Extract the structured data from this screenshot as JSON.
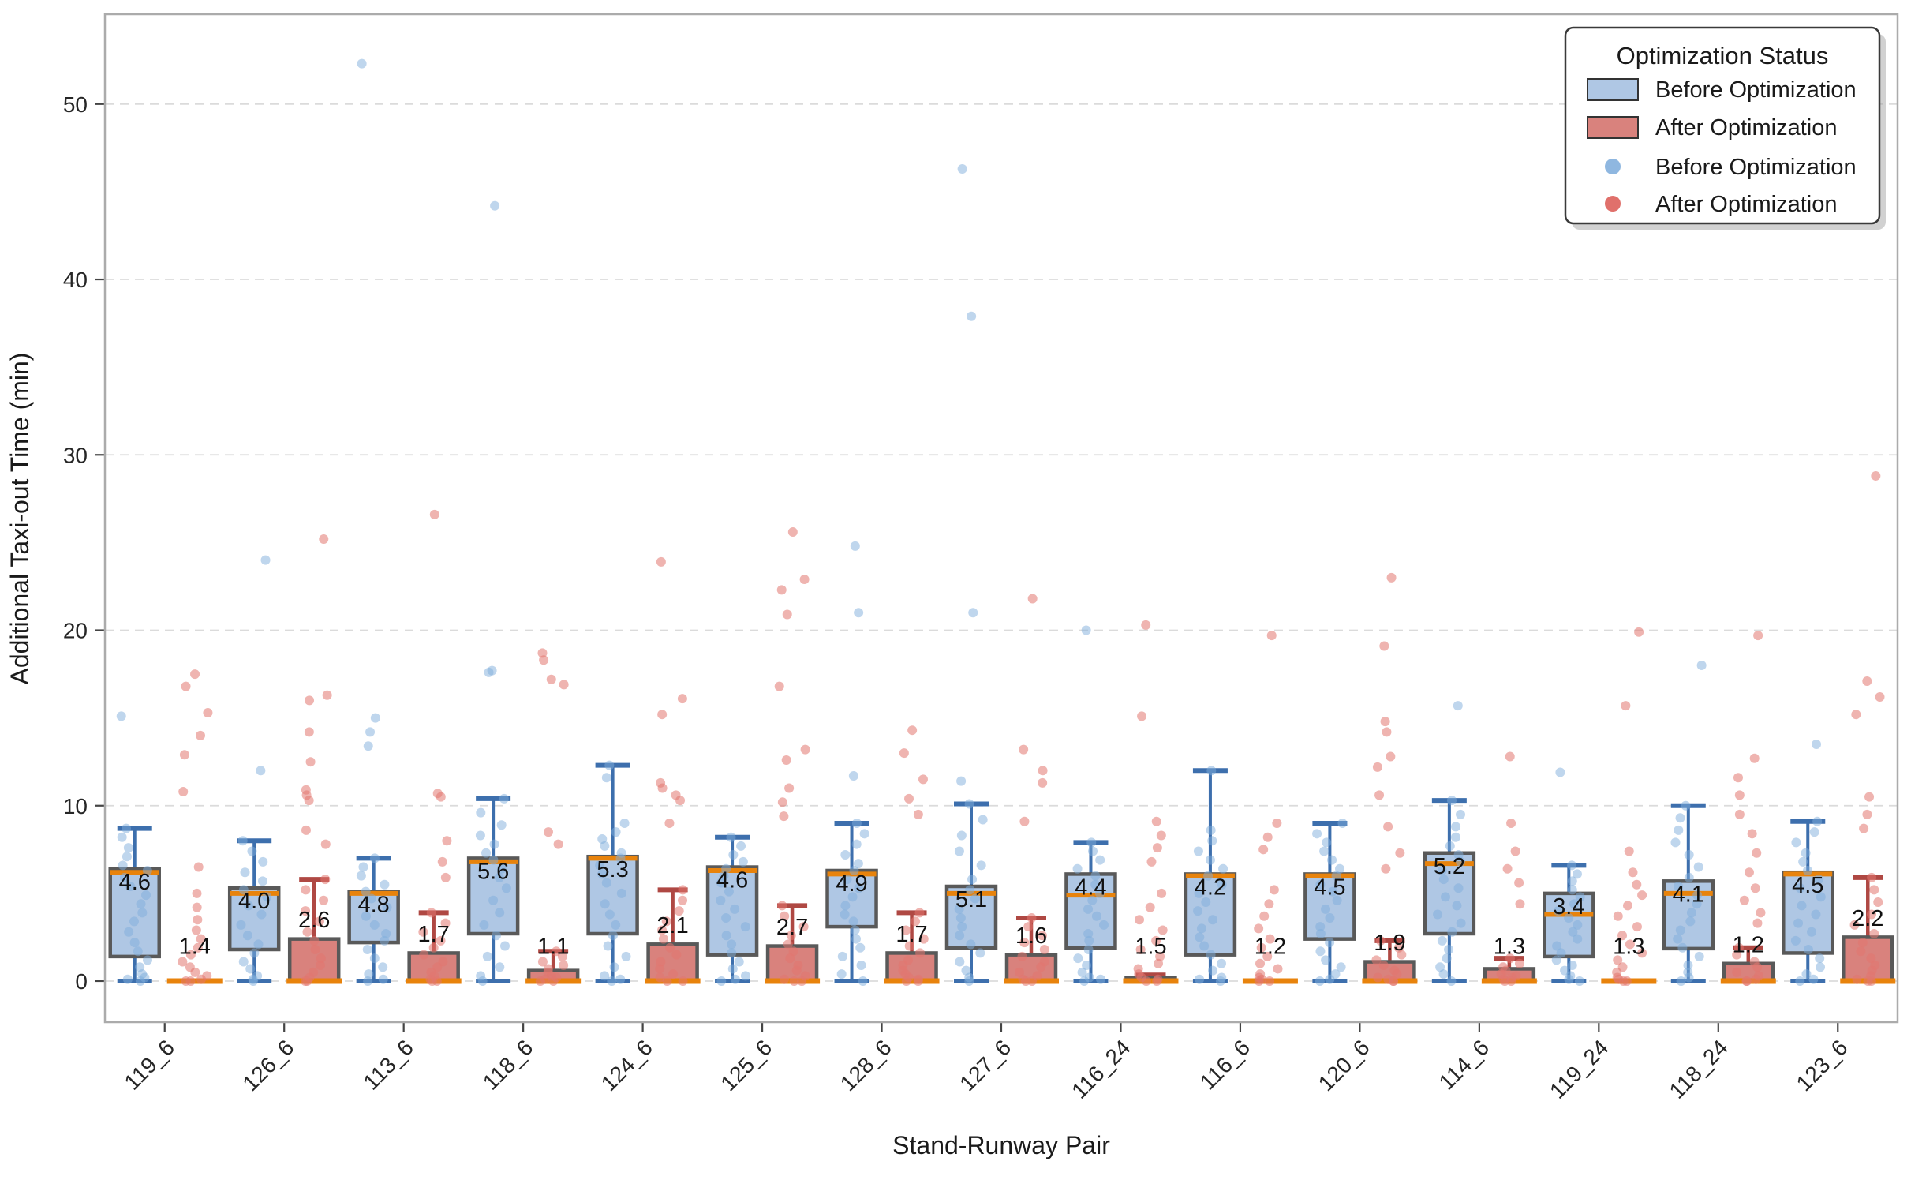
{
  "figure": {
    "xlabel": "Stand-Runway Pair",
    "ylabel": "Additional Taxi-out Time (min)",
    "legend": {
      "title": "Optimization Status",
      "items": [
        {
          "type": "patch",
          "label": "Before Optimization",
          "color": "#AFC7E4"
        },
        {
          "type": "patch",
          "label": "After Optimization",
          "color": "#D9827D"
        },
        {
          "type": "dot",
          "label": "Before Optimization",
          "color": "#8FB7E0"
        },
        {
          "type": "dot",
          "label": "After Optimization",
          "color": "#E0706B"
        }
      ]
    }
  },
  "chart_data": {
    "type": "boxplot-with-strip",
    "title": "",
    "xlabel": "Stand-Runway Pair",
    "ylabel": "Additional Taxi-out Time (min)",
    "categories": [
      "119_6",
      "126_6",
      "113_6",
      "118_6",
      "124_6",
      "125_6",
      "128_6",
      "127_6",
      "116_24",
      "116_6",
      "120_6",
      "114_6",
      "119_24",
      "118_24",
      "123_6"
    ],
    "yticks": [
      0,
      10,
      20,
      30,
      40,
      50
    ],
    "ylim": [
      -2.34,
      55.12
    ],
    "grid": true,
    "legend_position": "upper-right",
    "colors": {
      "box_before_fill": "#AFC7E4",
      "box_after_fill": "#D9827D",
      "box_edge": "#595959",
      "median_line": "#E8830C",
      "whisker_before": "#3D6FAD",
      "whisker_after": "#AF4843",
      "dot_before": "#7FAEDC",
      "dot_after": "#E2766F",
      "gridline": "#DBDBDB",
      "spine": "#ABABAB"
    },
    "series": [
      {
        "name": "Before Optimization",
        "role": "box",
        "stats": [
          {
            "q1": 1.4,
            "median": 6.2,
            "q3": 6.4,
            "whisker_low": 0,
            "whisker_high": 8.7,
            "mean_label": "4.6"
          },
          {
            "q1": 1.8,
            "median": 5.0,
            "q3": 5.3,
            "whisker_low": 0,
            "whisker_high": 8.0,
            "mean_label": "4.0"
          },
          {
            "q1": 2.2,
            "median": 5.0,
            "q3": 5.1,
            "whisker_low": 0,
            "whisker_high": 7.0,
            "mean_label": "4.8"
          },
          {
            "q1": 2.7,
            "median": 6.8,
            "q3": 7.0,
            "whisker_low": 0,
            "whisker_high": 10.4,
            "mean_label": "5.6"
          },
          {
            "q1": 2.7,
            "median": 7.0,
            "q3": 7.1,
            "whisker_low": 0,
            "whisker_high": 12.3,
            "mean_label": "5.3"
          },
          {
            "q1": 1.5,
            "median": 6.3,
            "q3": 6.5,
            "whisker_low": 0,
            "whisker_high": 8.2,
            "mean_label": "4.6"
          },
          {
            "q1": 3.1,
            "median": 6.1,
            "q3": 6.3,
            "whisker_low": 0,
            "whisker_high": 9.0,
            "mean_label": "4.9"
          },
          {
            "q1": 1.9,
            "median": 5.0,
            "q3": 5.4,
            "whisker_low": 0,
            "whisker_high": 10.1,
            "mean_label": "5.1"
          },
          {
            "q1": 1.9,
            "median": 4.9,
            "q3": 6.1,
            "whisker_low": 0,
            "whisker_high": 7.9,
            "mean_label": "4.4"
          },
          {
            "q1": 1.5,
            "median": 6.0,
            "q3": 6.1,
            "whisker_low": 0,
            "whisker_high": 12.0,
            "mean_label": "4.2"
          },
          {
            "q1": 2.4,
            "median": 6.0,
            "q3": 6.1,
            "whisker_low": 0,
            "whisker_high": 9.0,
            "mean_label": "4.5"
          },
          {
            "q1": 2.7,
            "median": 6.7,
            "q3": 7.3,
            "whisker_low": 0,
            "whisker_high": 10.3,
            "mean_label": "5.2"
          },
          {
            "q1": 1.4,
            "median": 3.8,
            "q3": 5.0,
            "whisker_low": 0,
            "whisker_high": 6.6,
            "mean_label": "3.4"
          },
          {
            "q1": 1.85,
            "median": 5.0,
            "q3": 5.7,
            "whisker_low": 0,
            "whisker_high": 10.0,
            "mean_label": "4.1"
          },
          {
            "q1": 1.6,
            "median": 6.1,
            "q3": 6.2,
            "whisker_low": 0,
            "whisker_high": 9.1,
            "mean_label": "4.5"
          }
        ],
        "points": [
          [
            15.1,
            8.7,
            8.2,
            7.6,
            7.1,
            6.6,
            6.3,
            5.9,
            5.4,
            4.9,
            4.4,
            3.9,
            3.4,
            2.8,
            2.2,
            1.7,
            1.2,
            0.8,
            0.4,
            0.2,
            0.1,
            0
          ],
          [
            24.0,
            12.0,
            8.0,
            7.4,
            6.8,
            6.2,
            5.7,
            5.2,
            4.8,
            4.3,
            3.8,
            3.2,
            2.6,
            2.1,
            1.6,
            1.1,
            0.7,
            0.3,
            0.1,
            0
          ],
          [
            52.3,
            15.0,
            14.2,
            13.4,
            7.0,
            6.5,
            6.0,
            5.5,
            5.1,
            4.7,
            4.2,
            3.7,
            3.2,
            2.7,
            2.3,
            1.8,
            1.3,
            0.8,
            0.4,
            0.1,
            0
          ],
          [
            44.2,
            17.7,
            17.6,
            10.4,
            9.6,
            8.9,
            8.3,
            7.8,
            7.3,
            6.9,
            6.4,
            5.9,
            5.3,
            4.6,
            3.9,
            3.2,
            2.6,
            2.0,
            1.4,
            0.8,
            0.3,
            0
          ],
          [
            12.3,
            11.6,
            9.0,
            8.5,
            8.1,
            7.7,
            7.3,
            7.0,
            6.6,
            6.1,
            5.6,
            5.0,
            4.4,
            3.8,
            3.2,
            2.6,
            2.0,
            1.4,
            0.8,
            0.3,
            0.1,
            0
          ],
          [
            8.2,
            7.7,
            7.2,
            6.8,
            6.4,
            6.0,
            5.6,
            5.1,
            4.6,
            4.1,
            3.6,
            3.1,
            2.6,
            2.1,
            1.6,
            1.1,
            0.7,
            0.3,
            0.1,
            0
          ],
          [
            24.8,
            21.0,
            11.7,
            9.0,
            8.4,
            7.8,
            7.2,
            6.7,
            6.3,
            5.8,
            5.3,
            4.8,
            4.3,
            3.8,
            3.4,
            2.9,
            2.4,
            1.9,
            1.4,
            0.9,
            0.4,
            0
          ],
          [
            46.3,
            37.9,
            21.0,
            11.4,
            10.1,
            9.2,
            8.3,
            7.4,
            6.6,
            5.8,
            5.2,
            4.7,
            4.1,
            3.6,
            3.1,
            2.6,
            2.1,
            1.6,
            1.1,
            0.6,
            0.2,
            0
          ],
          [
            20.0,
            7.9,
            7.4,
            6.9,
            6.4,
            6.0,
            5.5,
            5.0,
            4.6,
            4.1,
            3.7,
            3.2,
            2.7,
            2.3,
            1.8,
            1.3,
            0.9,
            0.5,
            0.2,
            0.1,
            0
          ],
          [
            12.0,
            8.6,
            8.0,
            7.4,
            6.9,
            6.4,
            6.0,
            5.5,
            5.0,
            4.5,
            4.0,
            3.5,
            3.0,
            2.5,
            2.0,
            1.5,
            1.0,
            0.6,
            0.2,
            0.1,
            0
          ],
          [
            9.0,
            8.4,
            7.9,
            7.4,
            6.9,
            6.4,
            6.0,
            5.5,
            5.1,
            4.6,
            4.1,
            3.6,
            3.1,
            2.7,
            2.2,
            1.7,
            1.2,
            0.8,
            0.4,
            0.1,
            0
          ],
          [
            15.7,
            10.3,
            9.5,
            8.8,
            8.2,
            7.7,
            7.2,
            6.8,
            6.3,
            5.8,
            5.3,
            4.8,
            4.3,
            3.8,
            3.3,
            2.8,
            2.3,
            1.8,
            1.3,
            0.8,
            0.4,
            0
          ],
          [
            11.9,
            6.6,
            6.1,
            5.7,
            5.2,
            4.8,
            4.4,
            4.0,
            3.6,
            3.2,
            2.8,
            2.4,
            2.0,
            1.6,
            1.2,
            0.9,
            0.6,
            0.3,
            0.1,
            0
          ],
          [
            18.0,
            10.0,
            9.3,
            8.6,
            7.9,
            7.2,
            6.5,
            5.9,
            5.4,
            4.9,
            4.4,
            3.9,
            3.4,
            2.9,
            2.4,
            1.9,
            1.4,
            0.9,
            0.5,
            0.2,
            0
          ],
          [
            13.5,
            9.1,
            8.5,
            7.9,
            7.3,
            6.8,
            6.3,
            5.8,
            5.3,
            4.8,
            4.3,
            3.8,
            3.3,
            2.8,
            2.3,
            1.8,
            1.3,
            0.8,
            0.4,
            0.1,
            0
          ]
        ]
      },
      {
        "name": "After Optimization",
        "role": "box",
        "stats": [
          {
            "q1": 0,
            "median": 0,
            "q3": 0.08,
            "whisker_low": 0,
            "whisker_high": 0.1,
            "mean_label": "1.4"
          },
          {
            "q1": 0,
            "median": 0,
            "q3": 2.4,
            "whisker_low": 0,
            "whisker_high": 5.8,
            "mean_label": "2.6"
          },
          {
            "q1": 0,
            "median": 0,
            "q3": 1.6,
            "whisker_low": 0,
            "whisker_high": 3.9,
            "mean_label": "1.7"
          },
          {
            "q1": 0,
            "median": 0,
            "q3": 0.6,
            "whisker_low": 0,
            "whisker_high": 1.7,
            "mean_label": "1.1"
          },
          {
            "q1": 0,
            "median": 0,
            "q3": 2.1,
            "whisker_low": 0,
            "whisker_high": 5.2,
            "mean_label": "2.1"
          },
          {
            "q1": 0,
            "median": 0,
            "q3": 2.0,
            "whisker_low": 0,
            "whisker_high": 4.3,
            "mean_label": "2.7"
          },
          {
            "q1": 0,
            "median": 0,
            "q3": 1.6,
            "whisker_low": 0,
            "whisker_high": 3.9,
            "mean_label": "1.7"
          },
          {
            "q1": 0,
            "median": 0,
            "q3": 1.5,
            "whisker_low": 0,
            "whisker_high": 3.6,
            "mean_label": "1.6"
          },
          {
            "q1": 0,
            "median": 0,
            "q3": 0.2,
            "whisker_low": 0,
            "whisker_high": 0.35,
            "mean_label": "1.5"
          },
          {
            "q1": 0,
            "median": 0,
            "q3": 0.06,
            "whisker_low": 0,
            "whisker_high": 0.1,
            "mean_label": "1.2"
          },
          {
            "q1": 0,
            "median": 0,
            "q3": 1.1,
            "whisker_low": 0,
            "whisker_high": 2.3,
            "mean_label": "1.9"
          },
          {
            "q1": 0,
            "median": 0,
            "q3": 0.7,
            "whisker_low": 0,
            "whisker_high": 1.3,
            "mean_label": "1.3"
          },
          {
            "q1": 0,
            "median": 0,
            "q3": 0.08,
            "whisker_low": 0,
            "whisker_high": 0.15,
            "mean_label": "1.3"
          },
          {
            "q1": 0,
            "median": 0,
            "q3": 1.0,
            "whisker_low": 0,
            "whisker_high": 1.9,
            "mean_label": "1.2"
          },
          {
            "q1": 0,
            "median": 0,
            "q3": 2.5,
            "whisker_low": 0,
            "whisker_high": 5.9,
            "mean_label": "2.2"
          }
        ],
        "points": [
          [
            17.5,
            16.8,
            15.3,
            14.0,
            12.9,
            10.8,
            6.5,
            5.0,
            4.2,
            3.5,
            2.9,
            2.4,
            1.9,
            1.5,
            1.1,
            0.8,
            0.5,
            0.3,
            0.1,
            0,
            0
          ],
          [
            25.2,
            16.3,
            16.0,
            14.2,
            12.5,
            10.9,
            10.6,
            10.3,
            8.6,
            7.8,
            5.8,
            5.2,
            4.6,
            4.0,
            3.4,
            2.8,
            2.3,
            1.8,
            1.3,
            0.9,
            0.5,
            0.2,
            0,
            0
          ],
          [
            26.6,
            10.7,
            10.5,
            8.0,
            6.8,
            5.9,
            3.9,
            3.3,
            2.8,
            2.3,
            1.9,
            1.5,
            1.1,
            0.8,
            0.5,
            0.3,
            0.1,
            0,
            0
          ],
          [
            18.7,
            18.3,
            17.2,
            16.9,
            8.5,
            7.8,
            1.7,
            1.4,
            1.1,
            0.9,
            0.7,
            0.5,
            0.3,
            0.2,
            0.1,
            0,
            0
          ],
          [
            23.9,
            16.1,
            15.2,
            11.3,
            11.0,
            10.6,
            10.3,
            9.0,
            5.2,
            4.6,
            4.0,
            3.4,
            2.9,
            2.4,
            1.9,
            1.5,
            1.1,
            0.7,
            0.4,
            0.2,
            0,
            0
          ],
          [
            25.6,
            22.9,
            22.3,
            20.9,
            16.8,
            13.2,
            12.6,
            11.0,
            10.2,
            9.4,
            4.3,
            3.7,
            3.1,
            2.6,
            2.1,
            1.7,
            1.3,
            0.9,
            0.6,
            0.3,
            0.1,
            0,
            0
          ],
          [
            14.3,
            13.0,
            11.5,
            10.4,
            9.5,
            3.9,
            3.4,
            2.9,
            2.4,
            2.0,
            1.6,
            1.2,
            0.9,
            0.6,
            0.4,
            0.2,
            0.1,
            0,
            0
          ],
          [
            21.8,
            13.2,
            12.0,
            11.3,
            9.1,
            3.6,
            3.1,
            2.6,
            2.2,
            1.8,
            1.4,
            1.1,
            0.8,
            0.5,
            0.3,
            0.1,
            0,
            0
          ],
          [
            20.3,
            15.1,
            9.1,
            8.3,
            7.6,
            6.8,
            5.0,
            4.2,
            3.5,
            2.9,
            2.3,
            1.8,
            1.4,
            1.0,
            0.7,
            0.4,
            0.2,
            0.1,
            0,
            0
          ],
          [
            19.7,
            9.0,
            8.2,
            7.5,
            5.2,
            4.4,
            3.7,
            3.0,
            2.4,
            1.9,
            1.4,
            1.0,
            0.7,
            0.4,
            0.2,
            0.1,
            0,
            0
          ],
          [
            23.0,
            19.1,
            14.8,
            14.2,
            12.8,
            12.2,
            10.6,
            8.8,
            7.3,
            6.4,
            2.3,
            1.9,
            1.5,
            1.2,
            0.9,
            0.6,
            0.4,
            0.2,
            0.1,
            0,
            0
          ],
          [
            12.8,
            9.0,
            7.4,
            6.4,
            5.6,
            4.4,
            1.3,
            1.0,
            0.8,
            0.6,
            0.4,
            0.3,
            0.2,
            0.1,
            0,
            0
          ],
          [
            19.9,
            15.7,
            7.4,
            6.2,
            5.5,
            4.9,
            4.3,
            3.7,
            3.1,
            2.6,
            2.1,
            1.6,
            1.2,
            0.8,
            0.5,
            0.2,
            0.1,
            0,
            0
          ],
          [
            19.7,
            12.7,
            11.6,
            10.6,
            9.5,
            8.4,
            7.3,
            6.2,
            5.3,
            4.6,
            3.9,
            3.3,
            1.9,
            1.5,
            1.1,
            0.8,
            0.5,
            0.3,
            0.1,
            0,
            0
          ],
          [
            28.8,
            17.1,
            16.2,
            15.2,
            10.5,
            9.5,
            8.7,
            5.9,
            5.2,
            4.5,
            3.8,
            3.2,
            2.7,
            2.2,
            1.7,
            1.3,
            0.9,
            0.6,
            0.3,
            0.1,
            0,
            0
          ]
        ]
      }
    ]
  }
}
